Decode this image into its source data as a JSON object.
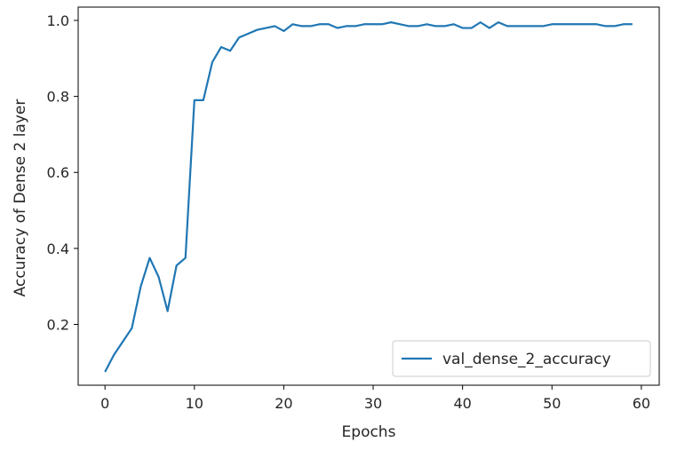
{
  "chart_data": {
    "type": "line",
    "title": "",
    "xlabel": "Epochs",
    "ylabel": "Accuracy of Dense 2 layer",
    "xlim": [
      -3,
      62
    ],
    "ylim": [
      0.04,
      1.035
    ],
    "xticks": [
      0,
      10,
      20,
      30,
      40,
      50,
      60
    ],
    "yticks": [
      0.2,
      0.4,
      0.6,
      0.8,
      1.0
    ],
    "ytick_labels": [
      "0.2",
      "0.4",
      "0.6",
      "0.8",
      "1.0"
    ],
    "grid": false,
    "legend_position": "lower-right",
    "series": [
      {
        "name": "val_dense_2_accuracy",
        "color": "#1f77b4",
        "x": [
          0,
          1,
          2,
          3,
          4,
          5,
          6,
          7,
          8,
          9,
          10,
          11,
          12,
          13,
          14,
          15,
          16,
          17,
          18,
          19,
          20,
          21,
          22,
          23,
          24,
          25,
          26,
          27,
          28,
          29,
          30,
          31,
          32,
          33,
          34,
          35,
          36,
          37,
          38,
          39,
          40,
          41,
          42,
          43,
          44,
          45,
          46,
          47,
          48,
          49,
          50,
          51,
          52,
          53,
          54,
          55,
          56,
          57,
          58,
          59
        ],
        "y": [
          0.075,
          0.12,
          0.155,
          0.19,
          0.3,
          0.375,
          0.325,
          0.235,
          0.355,
          0.375,
          0.79,
          0.79,
          0.89,
          0.93,
          0.92,
          0.955,
          0.965,
          0.975,
          0.98,
          0.985,
          0.972,
          0.99,
          0.985,
          0.985,
          0.99,
          0.99,
          0.98,
          0.985,
          0.985,
          0.99,
          0.99,
          0.99,
          0.995,
          0.99,
          0.985,
          0.985,
          0.99,
          0.985,
          0.985,
          0.99,
          0.98,
          0.98,
          0.995,
          0.98,
          0.995,
          0.985,
          0.985,
          0.985,
          0.985,
          0.985,
          0.99,
          0.99,
          0.99,
          0.99,
          0.99,
          0.99,
          0.985,
          0.985,
          0.99,
          0.99
        ]
      }
    ]
  }
}
